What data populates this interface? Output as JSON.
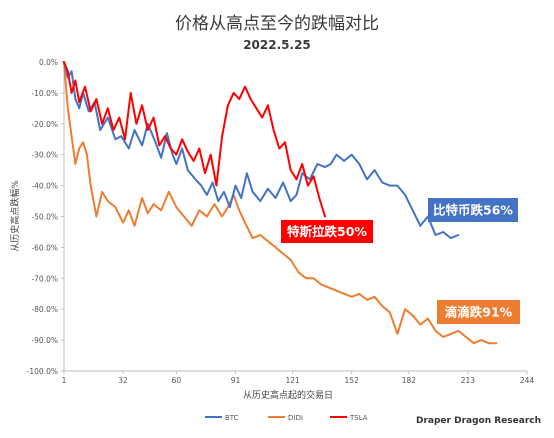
{
  "chart_data": {
    "type": "line",
    "title": "价格从高点至今的跌幅对比",
    "subtitle": "2022.5.25",
    "xlabel": "从历史高点起的交易日",
    "ylabel": "从历史高点跌幅%",
    "x_ticks": [
      1,
      32,
      60,
      91,
      121,
      152,
      182,
      213,
      244
    ],
    "x_range": [
      1,
      244
    ],
    "y_ticks": [
      "0.0%",
      "-10.0%",
      "-20.0%",
      "-30.0%",
      "-40.0%",
      "-50.0%",
      "-60.0%",
      "-70.0%",
      "-80.0%",
      "-90.0%",
      "-100.0%"
    ],
    "ylim": [
      -100,
      0
    ],
    "grid": false,
    "legend_position": "bottom",
    "source": "Draper Dragon Research",
    "series": [
      {
        "name": "BTC",
        "color": "#4472c4",
        "callout": "比特币跌56%",
        "x": [
          1,
          3,
          5,
          7,
          9,
          11,
          14,
          17,
          20,
          24,
          28,
          31,
          35,
          38,
          42,
          45,
          49,
          52,
          55,
          58,
          60,
          63,
          66,
          70,
          73,
          76,
          79,
          82,
          85,
          88,
          91,
          94,
          97,
          100,
          104,
          108,
          112,
          116,
          120,
          123,
          126,
          130,
          134,
          138,
          141,
          144,
          148,
          152,
          156,
          160,
          164,
          168,
          172,
          176,
          180,
          184,
          188,
          192,
          196,
          200,
          204,
          208
        ],
        "y": [
          0,
          -5,
          -3,
          -12,
          -15,
          -10,
          -16,
          -13,
          -22,
          -18,
          -25,
          -24,
          -28,
          -22,
          -27,
          -20,
          -26,
          -31,
          -23,
          -30,
          -33,
          -28,
          -35,
          -38,
          -40,
          -43,
          -39,
          -45,
          -42,
          -47,
          -40,
          -44,
          -36,
          -42,
          -45,
          -41,
          -44,
          -39,
          -45,
          -43,
          -36,
          -38,
          -33,
          -34,
          -33,
          -30,
          -32,
          -30,
          -33,
          -38,
          -35,
          -39,
          -40,
          -40,
          -43,
          -48,
          -53,
          -50,
          -56,
          -55,
          -57,
          -56
        ]
      },
      {
        "name": "DIDI",
        "color": "#ed7d31",
        "callout": "滴滴跌91%",
        "x": [
          1,
          3,
          5,
          7,
          9,
          11,
          13,
          15,
          18,
          21,
          24,
          28,
          32,
          35,
          38,
          42,
          45,
          48,
          52,
          56,
          60,
          64,
          68,
          72,
          76,
          80,
          84,
          87,
          90,
          93,
          96,
          100,
          104,
          108,
          112,
          116,
          120,
          124,
          128,
          132,
          136,
          140,
          144,
          148,
          152,
          156,
          160,
          164,
          168,
          172,
          176,
          180,
          184,
          188,
          192,
          196,
          200,
          204,
          208,
          212,
          216,
          220,
          224,
          228
        ],
        "y": [
          0,
          -15,
          -24,
          -33,
          -28,
          -26,
          -30,
          -40,
          -50,
          -42,
          -45,
          -47,
          -52,
          -48,
          -53,
          -44,
          -49,
          -46,
          -48,
          -42,
          -47,
          -50,
          -53,
          -48,
          -50,
          -46,
          -50,
          -47,
          -43,
          -48,
          -52,
          -57,
          -56,
          -58,
          -60,
          -62,
          -64,
          -68,
          -70,
          -70,
          -72,
          -73,
          -74,
          -75,
          -76,
          -75,
          -77,
          -76,
          -79,
          -81,
          -88,
          -80,
          -82,
          -85,
          -83,
          -87,
          -89,
          -88,
          -87,
          -89,
          -91,
          -90,
          -91,
          -91
        ]
      },
      {
        "name": "TSLA",
        "color": "#ff0000",
        "callout": "特斯拉跌50%",
        "x": [
          1,
          3,
          5,
          7,
          9,
          12,
          15,
          18,
          21,
          24,
          27,
          30,
          33,
          36,
          39,
          42,
          45,
          48,
          51,
          54,
          57,
          60,
          63,
          66,
          69,
          72,
          75,
          78,
          81,
          84,
          87,
          90,
          93,
          96,
          99,
          102,
          105,
          108,
          111,
          114,
          117,
          120,
          123,
          126,
          129,
          132,
          135,
          138
        ],
        "y": [
          0,
          -3,
          -10,
          -6,
          -13,
          -8,
          -16,
          -12,
          -20,
          -15,
          -22,
          -18,
          -25,
          -10,
          -20,
          -14,
          -22,
          -18,
          -27,
          -24,
          -28,
          -30,
          -25,
          -29,
          -32,
          -28,
          -36,
          -30,
          -40,
          -24,
          -14,
          -10,
          -12,
          -8,
          -12,
          -15,
          -18,
          -14,
          -22,
          -28,
          -26,
          -35,
          -38,
          -33,
          -40,
          -37,
          -44,
          -50
        ]
      }
    ]
  }
}
